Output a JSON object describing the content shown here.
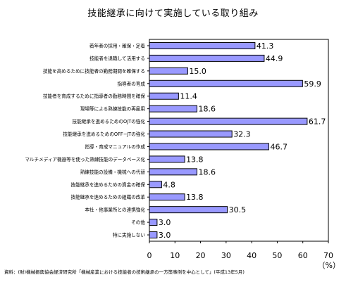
{
  "chart_data": {
    "type": "bar",
    "orientation": "horizontal",
    "title": "技能継承に向けて実施している取り組み",
    "categories": [
      "若年者の採用・確保・定着",
      "技能者を退職して活用する",
      "技能を高めるために技能者の勤務期間を確保する",
      "指導者の育成",
      "技能者を育成するために指導者の勤務時間を確保",
      "現場等による熟練技能の再雇用",
      "技能継承を進めるためのOJTの強化",
      "技能継承を進めるためのOFF−JTの強化",
      "指導・育成マニュアルの作成",
      "マルチメディア機器等を使った熟練技能のデータベース化",
      "熟練技能の設備・機械への代替",
      "技能継承を進めるための資金の確保",
      "技能継承を進めるための組織の改革",
      "本社・他事業所との連携強化",
      "その他",
      "特に実施しない"
    ],
    "values": [
      41.3,
      44.9,
      15.0,
      59.9,
      11.4,
      18.6,
      61.7,
      32.3,
      46.7,
      13.8,
      18.6,
      4.8,
      13.8,
      30.5,
      3.0,
      3.0
    ],
    "value_labels": [
      "41.3",
      "44.9",
      "15.0",
      "59.9",
      "11.4",
      "18.6",
      "61.7",
      "32.3",
      "46.7",
      "13.8",
      "18.6",
      "4.8",
      "13.8",
      "30.5",
      "3.0",
      "3.0"
    ],
    "xlim": [
      0,
      70
    ],
    "xticks": [
      "0",
      "10",
      "20",
      "30",
      "40",
      "50",
      "60",
      "70"
    ],
    "unit_label": "（%）",
    "grid": false,
    "bar_color": "#9999ff",
    "bar_edge_color": "#000000"
  },
  "source_note": "資料：(財)機械振興協会経済研究所「機械産業における技能者の技術継承の一方策事例を中心として」(平成13年5月)"
}
